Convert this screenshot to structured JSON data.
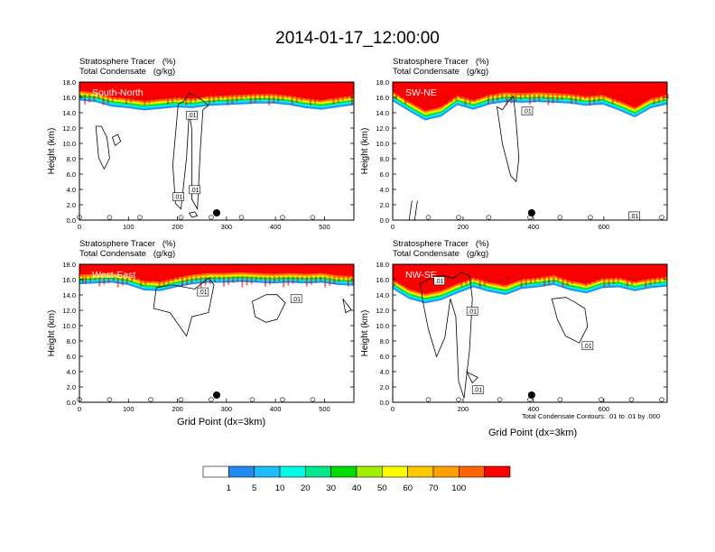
{
  "title": "2014-01-17_12:00:00",
  "colorbar": {
    "boundaries": [
      "1",
      "5",
      "10",
      "20",
      "30",
      "40",
      "50",
      "60",
      "70",
      "100"
    ],
    "colors": [
      "#ffffff",
      "#1e8cf0",
      "#1ebefa",
      "#00fae6",
      "#00e78c",
      "#00dc00",
      "#a0f000",
      "#fafa00",
      "#ffc800",
      "#ffa000",
      "#ff6400",
      "#fa0000"
    ]
  },
  "contour_note": "Total Condensate Contours: .01 to .01 by .000",
  "chart_data": [
    {
      "type": "heatmap",
      "panel_label": "South-North",
      "subtitle_line1": "Stratosphere Tracer   (%)",
      "subtitle_line2": "Total Condensate   (g/kg)",
      "ylabel": "Height (km)",
      "xlabel": "",
      "xlim": [
        0,
        560
      ],
      "ylim": [
        0,
        18
      ],
      "xticks": [
        "0",
        "100",
        "200",
        "300",
        "400",
        "500"
      ],
      "yticks": [
        "0.0",
        "2.0",
        "4.0",
        "6.0",
        "8.0",
        "10.0",
        "12.0",
        "14.0",
        "16.0",
        "18.0"
      ],
      "tracer_base_km": [
        15.6,
        15.4,
        14.8,
        14.6,
        14.3,
        14.5,
        14.7,
        14.6,
        14.9,
        15.0,
        15.1,
        15.2,
        15.2,
        15.0,
        14.6,
        14.4,
        14.7,
        15.0
      ],
      "contour_labels": [
        ".01",
        ".01",
        ".01"
      ],
      "marker_x": 280
    },
    {
      "type": "heatmap",
      "panel_label": "SW-NE",
      "subtitle_line1": "Stratosphere Tracer   (%)",
      "subtitle_line2": "Total Condensate   (g/kg)",
      "ylabel": "Height (km)",
      "xlabel": "",
      "xlim": [
        0,
        780
      ],
      "ylim": [
        0,
        18
      ],
      "xticks": [
        "0",
        "200",
        "400",
        "600"
      ],
      "yticks": [
        "0.0",
        "2.0",
        "4.0",
        "6.0",
        "8.0",
        "10.0",
        "12.0",
        "14.0",
        "16.0",
        "18.0"
      ],
      "tracer_base_km": [
        15.5,
        14.2,
        13.0,
        13.5,
        15.0,
        14.4,
        15.1,
        15.4,
        15.3,
        15.4,
        15.3,
        15.2,
        14.9,
        15.1,
        14.3,
        13.4,
        14.6,
        15.1
      ],
      "contour_labels": [
        ".01",
        ".01"
      ],
      "marker_x": 395
    },
    {
      "type": "heatmap",
      "panel_label": "West-East",
      "subtitle_line1": "Stratosphere Tracer   (%)",
      "subtitle_line2": "Total Condensate   (g/kg)",
      "ylabel": "Height (km)",
      "xlabel": "Grid Point (dx=3km)",
      "xlim": [
        0,
        560
      ],
      "ylim": [
        0,
        18
      ],
      "xticks": [
        "0",
        "100",
        "200",
        "300",
        "400",
        "500"
      ],
      "yticks": [
        "0.0",
        "2.0",
        "4.0",
        "6.0",
        "8.0",
        "10.0",
        "12.0",
        "14.0",
        "16.0",
        "18.0"
      ],
      "tracer_base_km": [
        15.4,
        15.5,
        15.6,
        15.3,
        14.6,
        14.5,
        15.0,
        15.4,
        15.6,
        15.6,
        15.7,
        15.6,
        15.5,
        15.6,
        15.5,
        15.6,
        15.3,
        15.2
      ],
      "contour_labels": [
        ".01",
        ".01"
      ],
      "marker_x": 280
    },
    {
      "type": "heatmap",
      "panel_label": "NW-SE",
      "subtitle_line1": "Stratosphere Tracer   (%)",
      "subtitle_line2": "Total Condensate   (g/kg)",
      "ylabel": "Height (km)",
      "xlabel": "Grid Point (dx=3km)",
      "xlim": [
        0,
        780
      ],
      "ylim": [
        0,
        18
      ],
      "xticks": [
        "0",
        "200",
        "400",
        "600"
      ],
      "yticks": [
        "0.0",
        "2.0",
        "4.0",
        "6.0",
        "8.0",
        "10.0",
        "12.0",
        "14.0",
        "16.0",
        "18.0"
      ],
      "tracer_base_km": [
        14.8,
        13.5,
        12.9,
        13.3,
        14.2,
        15.0,
        14.4,
        14.0,
        14.8,
        15.0,
        15.3,
        14.6,
        14.2,
        14.9,
        15.0,
        14.5,
        14.9,
        15.1
      ],
      "contour_labels": [
        ".01",
        ".01",
        ".01",
        ".01"
      ],
      "marker_x": 395
    }
  ]
}
